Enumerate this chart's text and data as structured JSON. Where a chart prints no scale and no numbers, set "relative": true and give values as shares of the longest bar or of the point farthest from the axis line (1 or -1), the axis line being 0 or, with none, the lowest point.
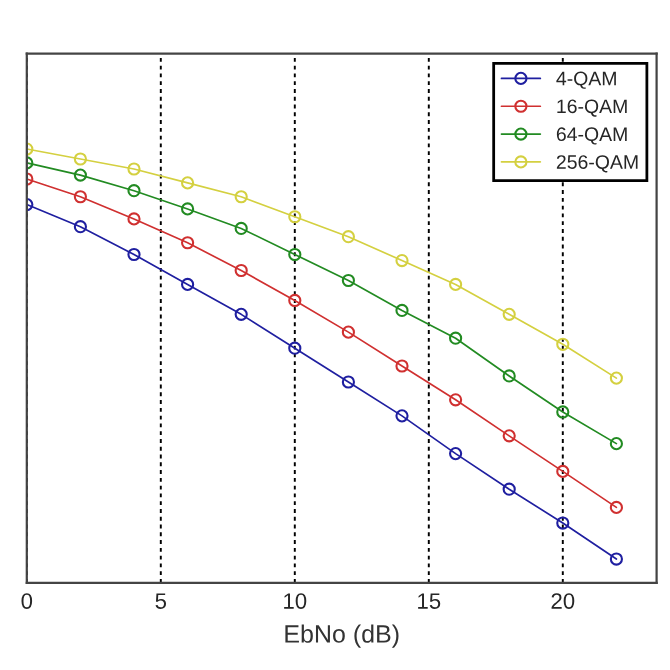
{
  "chart_data": {
    "type": "line",
    "xlabel": "EbNo (dB)",
    "relative": true,
    "x": [
      0,
      2,
      4,
      6,
      8,
      10,
      12,
      14,
      16,
      18,
      20,
      22
    ],
    "xlim": [
      0,
      23.5
    ],
    "xticks": [
      0,
      5,
      10,
      15,
      20
    ],
    "series": [
      {
        "name": "4-QAM",
        "color": "#1f1fa0",
        "values": [
          0.872,
          0.821,
          0.757,
          0.688,
          0.619,
          0.541,
          0.463,
          0.385,
          0.298,
          0.216,
          0.138,
          0.055
        ]
      },
      {
        "name": "16-QAM",
        "color": "#d03030",
        "values": [
          0.931,
          0.89,
          0.839,
          0.784,
          0.72,
          0.651,
          0.578,
          0.5,
          0.422,
          0.339,
          0.257,
          0.174
        ]
      },
      {
        "name": "64-QAM",
        "color": "#228b22",
        "values": [
          0.968,
          0.94,
          0.904,
          0.862,
          0.817,
          0.757,
          0.697,
          0.628,
          0.564,
          0.477,
          0.394,
          0.321
        ]
      },
      {
        "name": "256-QAM",
        "color": "#d4d040",
        "values": [
          1.0,
          0.977,
          0.954,
          0.922,
          0.89,
          0.844,
          0.798,
          0.743,
          0.688,
          0.619,
          0.55,
          0.472
        ]
      }
    ],
    "marker": "circle",
    "line_style": "solid",
    "grid": "x",
    "legend": "top right"
  }
}
